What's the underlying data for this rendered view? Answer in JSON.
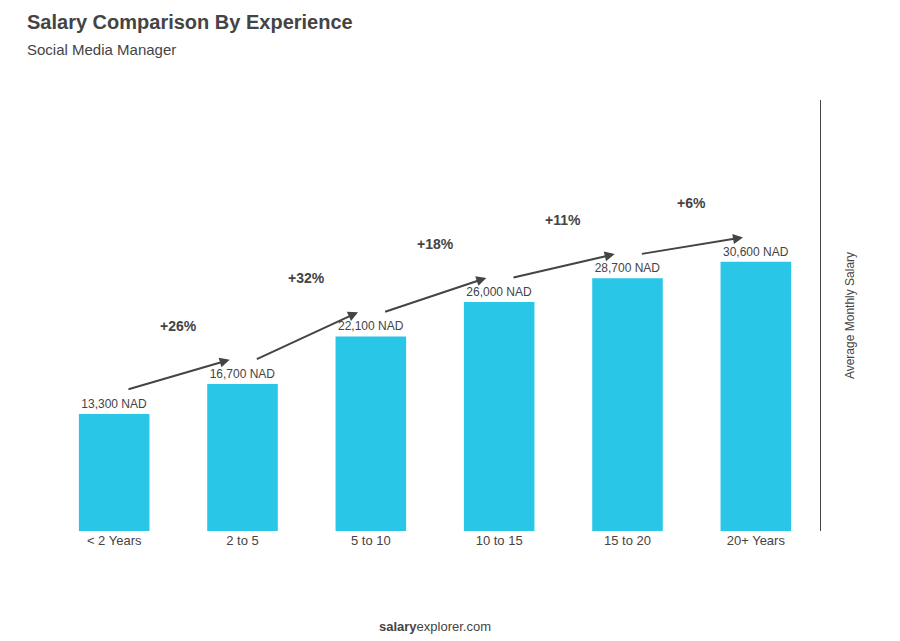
{
  "chart_data": {
    "type": "bar",
    "title": "Salary Comparison By Experience",
    "subtitle": "Social Media Manager",
    "y_label": "Average Monthly Salary",
    "categories": [
      "< 2 Years",
      "2 to 5",
      "5 to 10",
      "10 to 15",
      "15 to 20",
      "20+ Years"
    ],
    "values": [
      13300,
      16700,
      22100,
      26000,
      28700,
      30600
    ],
    "value_labels": [
      "13,300 NAD",
      "16,700 NAD",
      "22,100 NAD",
      "26,000 NAD",
      "28,700 NAD",
      "30,600 NAD"
    ],
    "data_labels": true,
    "color": "#29c6e8",
    "ylim": [
      0,
      48960
    ],
    "tick_labels": "x",
    "grid": false,
    "annotations": [
      {
        "text": "+26%",
        "from": "< 2 Years",
        "to": "2 to 5"
      },
      {
        "text": "+32%",
        "from": "2 to 5",
        "to": "5 to 10"
      },
      {
        "text": "+18%",
        "from": "5 to 10",
        "to": "10 to 15"
      },
      {
        "text": "+11%",
        "from": "10 to 15",
        "to": "15 to 20"
      },
      {
        "text": "+6%",
        "from": "15 to 20",
        "to": "20+ Years"
      }
    ],
    "watermark": [
      "salary",
      "explorer.com"
    ]
  }
}
